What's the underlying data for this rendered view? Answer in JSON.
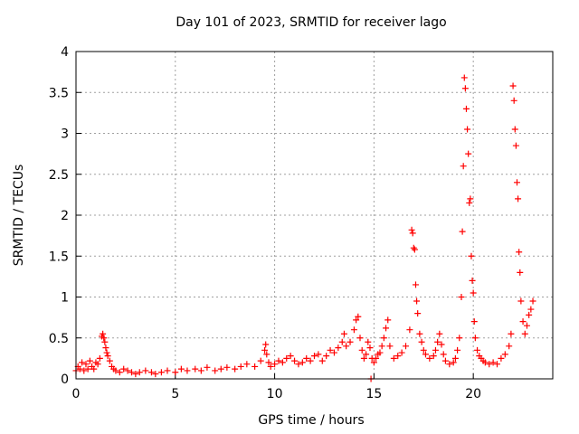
{
  "chart_data": {
    "type": "scatter",
    "title": "Day 101 of 2023, SRMTID for receiver lago",
    "xlabel": "GPS time / hours",
    "ylabel": "SRMTID / TECUs",
    "xlim": [
      0,
      24
    ],
    "ylim": [
      0,
      4
    ],
    "xticks": [
      0,
      5,
      10,
      15,
      20
    ],
    "yticks": [
      0,
      0.5,
      1,
      1.5,
      2,
      2.5,
      3,
      3.5,
      4
    ],
    "ytick_labels": [
      "0",
      "0.5",
      "1",
      "1.5",
      "2",
      "2.5",
      "3",
      "3.5",
      "4"
    ],
    "grid": true,
    "marker": "+",
    "color": "#ff0000",
    "series": [
      {
        "name": "SRMTID",
        "x": [
          0.0,
          0.1,
          0.2,
          0.3,
          0.4,
          0.5,
          0.6,
          0.7,
          0.8,
          0.9,
          1.0,
          1.1,
          1.2,
          1.3,
          1.35,
          1.4,
          1.45,
          1.5,
          1.55,
          1.6,
          1.7,
          1.8,
          1.9,
          2.0,
          2.2,
          2.4,
          2.6,
          2.8,
          3.0,
          3.2,
          3.5,
          3.8,
          4.0,
          4.3,
          4.6,
          5.0,
          5.3,
          5.6,
          6.0,
          6.3,
          6.6,
          7.0,
          7.3,
          7.6,
          8.0,
          8.3,
          8.6,
          9.0,
          9.3,
          9.5,
          9.55,
          9.6,
          9.7,
          9.8,
          10.0,
          10.2,
          10.4,
          10.6,
          10.8,
          11.0,
          11.2,
          11.4,
          11.6,
          11.8,
          12.0,
          12.2,
          12.4,
          12.6,
          12.8,
          13.0,
          13.2,
          13.4,
          13.5,
          13.6,
          13.8,
          14.0,
          14.1,
          14.2,
          14.3,
          14.4,
          14.5,
          14.6,
          14.7,
          14.8,
          14.85,
          14.9,
          15.0,
          15.1,
          15.2,
          15.3,
          15.4,
          15.5,
          15.6,
          15.7,
          15.8,
          16.0,
          16.2,
          16.4,
          16.6,
          16.8,
          16.9,
          16.95,
          17.0,
          17.05,
          17.1,
          17.15,
          17.2,
          17.3,
          17.4,
          17.5,
          17.6,
          17.8,
          18.0,
          18.1,
          18.2,
          18.3,
          18.4,
          18.5,
          18.6,
          18.8,
          19.0,
          19.1,
          19.2,
          19.3,
          19.4,
          19.45,
          19.5,
          19.55,
          19.6,
          19.65,
          19.7,
          19.75,
          19.8,
          19.85,
          19.9,
          19.95,
          20.0,
          20.05,
          20.1,
          20.2,
          20.3,
          20.4,
          20.5,
          20.6,
          20.8,
          21.0,
          21.2,
          21.4,
          21.6,
          21.8,
          21.9,
          22.0,
          22.05,
          22.1,
          22.15,
          22.2,
          22.25,
          22.3,
          22.35,
          22.4,
          22.5,
          22.6,
          22.7,
          22.8,
          22.9,
          23.0
        ],
        "values": [
          0.1,
          0.15,
          0.12,
          0.2,
          0.1,
          0.18,
          0.12,
          0.22,
          0.15,
          0.12,
          0.2,
          0.18,
          0.25,
          0.52,
          0.55,
          0.5,
          0.45,
          0.38,
          0.32,
          0.28,
          0.22,
          0.15,
          0.12,
          0.1,
          0.08,
          0.12,
          0.1,
          0.08,
          0.06,
          0.08,
          0.1,
          0.08,
          0.06,
          0.08,
          0.1,
          0.08,
          0.12,
          0.1,
          0.12,
          0.1,
          0.14,
          0.1,
          0.12,
          0.14,
          0.12,
          0.15,
          0.18,
          0.15,
          0.22,
          0.35,
          0.42,
          0.3,
          0.2,
          0.15,
          0.18,
          0.22,
          0.2,
          0.25,
          0.28,
          0.22,
          0.18,
          0.2,
          0.25,
          0.22,
          0.28,
          0.3,
          0.22,
          0.28,
          0.35,
          0.32,
          0.38,
          0.45,
          0.55,
          0.4,
          0.45,
          0.6,
          0.72,
          0.76,
          0.5,
          0.35,
          0.25,
          0.3,
          0.45,
          0.38,
          0.0,
          0.25,
          0.2,
          0.25,
          0.3,
          0.32,
          0.4,
          0.5,
          0.62,
          0.72,
          0.4,
          0.25,
          0.28,
          0.32,
          0.4,
          0.6,
          1.82,
          1.78,
          1.6,
          1.58,
          1.15,
          0.95,
          0.8,
          0.55,
          0.45,
          0.35,
          0.3,
          0.25,
          0.28,
          0.35,
          0.45,
          0.55,
          0.42,
          0.3,
          0.22,
          0.18,
          0.2,
          0.25,
          0.35,
          0.5,
          1.0,
          1.8,
          2.6,
          3.68,
          3.55,
          3.3,
          3.05,
          2.75,
          2.15,
          2.2,
          1.5,
          1.2,
          1.05,
          0.7,
          0.5,
          0.35,
          0.28,
          0.25,
          0.22,
          0.2,
          0.18,
          0.2,
          0.18,
          0.25,
          0.3,
          0.4,
          0.55,
          3.58,
          3.4,
          3.05,
          2.85,
          2.4,
          2.2,
          1.55,
          1.3,
          0.95,
          0.7,
          0.55,
          0.65,
          0.78,
          0.85,
          0.95
        ]
      }
    ]
  }
}
